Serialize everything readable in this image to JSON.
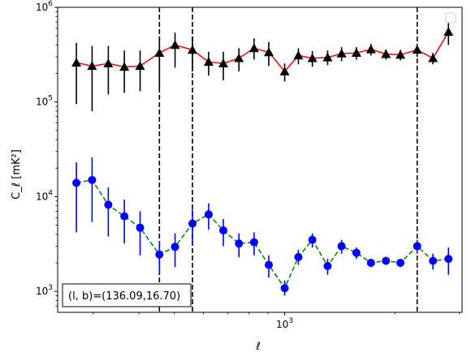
{
  "chart_data": {
    "type": "scatter",
    "title": "",
    "xlabel": "ℓ",
    "ylabel": "C_ℓ [mK²]",
    "xscale": "log",
    "yscale": "log",
    "xlim": [
      240,
      3050
    ],
    "ylim": [
      600,
      1000000
    ],
    "grid": false,
    "legend": "top-right (empty)",
    "x_tick_labels": [
      {
        "value": 1000,
        "base": "10",
        "exp": "3"
      }
    ],
    "y_tick_labels": [
      {
        "value": 1000,
        "base": "10",
        "exp": "3"
      },
      {
        "value": 10000,
        "base": "10",
        "exp": "4"
      },
      {
        "value": 100000,
        "base": "10",
        "exp": "5"
      },
      {
        "value": 1000000,
        "base": "10",
        "exp": "6"
      }
    ],
    "vlines": [
      455,
      560,
      2300
    ],
    "annotation": "(l, b)=(136.09,16.70)",
    "series": [
      {
        "marker": "triangle",
        "marker_color": "#000000",
        "line_color": "#ff0000",
        "line_style": "solid",
        "errorbar_color": "#000000",
        "points": [
          {
            "x": 270,
            "y": 260000,
            "lo": 95000,
            "hi": 420000
          },
          {
            "x": 298,
            "y": 240000,
            "lo": 80000,
            "hi": 390000
          },
          {
            "x": 330,
            "y": 255000,
            "lo": 120000,
            "hi": 390000
          },
          {
            "x": 365,
            "y": 235000,
            "lo": 125000,
            "hi": 350000
          },
          {
            "x": 403,
            "y": 240000,
            "lo": 130000,
            "hi": 350000
          },
          {
            "x": 455,
            "y": 330000,
            "lo": 140000,
            "hi": 490000
          },
          {
            "x": 502,
            "y": 400000,
            "lo": 230000,
            "hi": 540000
          },
          {
            "x": 560,
            "y": 355000,
            "lo": 210000,
            "hi": 490000
          },
          {
            "x": 620,
            "y": 265000,
            "lo": 190000,
            "hi": 340000
          },
          {
            "x": 680,
            "y": 255000,
            "lo": 170000,
            "hi": 340000
          },
          {
            "x": 750,
            "y": 290000,
            "lo": 210000,
            "hi": 370000
          },
          {
            "x": 825,
            "y": 370000,
            "lo": 280000,
            "hi": 470000
          },
          {
            "x": 905,
            "y": 335000,
            "lo": 240000,
            "hi": 430000
          },
          {
            "x": 1000,
            "y": 210000,
            "lo": 165000,
            "hi": 255000
          },
          {
            "x": 1090,
            "y": 310000,
            "lo": 250000,
            "hi": 370000
          },
          {
            "x": 1190,
            "y": 290000,
            "lo": 235000,
            "hi": 345000
          },
          {
            "x": 1310,
            "y": 295000,
            "lo": 245000,
            "hi": 350000
          },
          {
            "x": 1430,
            "y": 325000,
            "lo": 270000,
            "hi": 380000
          },
          {
            "x": 1570,
            "y": 330000,
            "lo": 280000,
            "hi": 380000
          },
          {
            "x": 1720,
            "y": 360000,
            "lo": 310000,
            "hi": 410000
          },
          {
            "x": 1890,
            "y": 320000,
            "lo": 280000,
            "hi": 360000
          },
          {
            "x": 2070,
            "y": 315000,
            "lo": 275000,
            "hi": 355000
          },
          {
            "x": 2300,
            "y": 355000,
            "lo": 300000,
            "hi": 410000
          },
          {
            "x": 2540,
            "y": 290000,
            "lo": 250000,
            "hi": 330000
          },
          {
            "x": 2800,
            "y": 550000,
            "lo": 400000,
            "hi": 700000
          }
        ]
      },
      {
        "marker": "circle",
        "marker_color": "#0000ff",
        "line_color": "#008000",
        "line_style": "dashed",
        "errorbar_color": "#0000ff",
        "points": [
          {
            "x": 270,
            "y": 14000,
            "lo": 4200,
            "hi": 23000
          },
          {
            "x": 298,
            "y": 15000,
            "lo": 5400,
            "hi": 26000
          },
          {
            "x": 330,
            "y": 8200,
            "lo": 3800,
            "hi": 12500
          },
          {
            "x": 365,
            "y": 6200,
            "lo": 3200,
            "hi": 9300
          },
          {
            "x": 403,
            "y": 4700,
            "lo": 2400,
            "hi": 7000
          },
          {
            "x": 455,
            "y": 2450,
            "lo": 1500,
            "hi": 3400
          },
          {
            "x": 502,
            "y": 2950,
            "lo": 1800,
            "hi": 4100
          },
          {
            "x": 560,
            "y": 5200,
            "lo": 3200,
            "hi": 7300
          },
          {
            "x": 620,
            "y": 6500,
            "lo": 4500,
            "hi": 8500
          },
          {
            "x": 680,
            "y": 4400,
            "lo": 3000,
            "hi": 5800
          },
          {
            "x": 750,
            "y": 3200,
            "lo": 2300,
            "hi": 4100
          },
          {
            "x": 825,
            "y": 3300,
            "lo": 2400,
            "hi": 4200
          },
          {
            "x": 905,
            "y": 1900,
            "lo": 1400,
            "hi": 2400
          },
          {
            "x": 1000,
            "y": 1080,
            "lo": 900,
            "hi": 1300
          },
          {
            "x": 1090,
            "y": 2300,
            "lo": 1900,
            "hi": 2750
          },
          {
            "x": 1190,
            "y": 3500,
            "lo": 2900,
            "hi": 4100
          },
          {
            "x": 1310,
            "y": 1850,
            "lo": 1500,
            "hi": 2200
          },
          {
            "x": 1430,
            "y": 3000,
            "lo": 2500,
            "hi": 3500
          },
          {
            "x": 1570,
            "y": 2550,
            "lo": 2200,
            "hi": 2900
          },
          {
            "x": 1720,
            "y": 2000,
            "lo": 1800,
            "hi": 2200
          },
          {
            "x": 1890,
            "y": 2100,
            "lo": 1900,
            "hi": 2300
          },
          {
            "x": 2070,
            "y": 2000,
            "lo": 1800,
            "hi": 2200
          },
          {
            "x": 2300,
            "y": 3000,
            "lo": 2500,
            "hi": 3500
          },
          {
            "x": 2540,
            "y": 2100,
            "lo": 1700,
            "hi": 2500
          },
          {
            "x": 2800,
            "y": 2200,
            "lo": 1500,
            "hi": 2900
          }
        ]
      }
    ]
  }
}
